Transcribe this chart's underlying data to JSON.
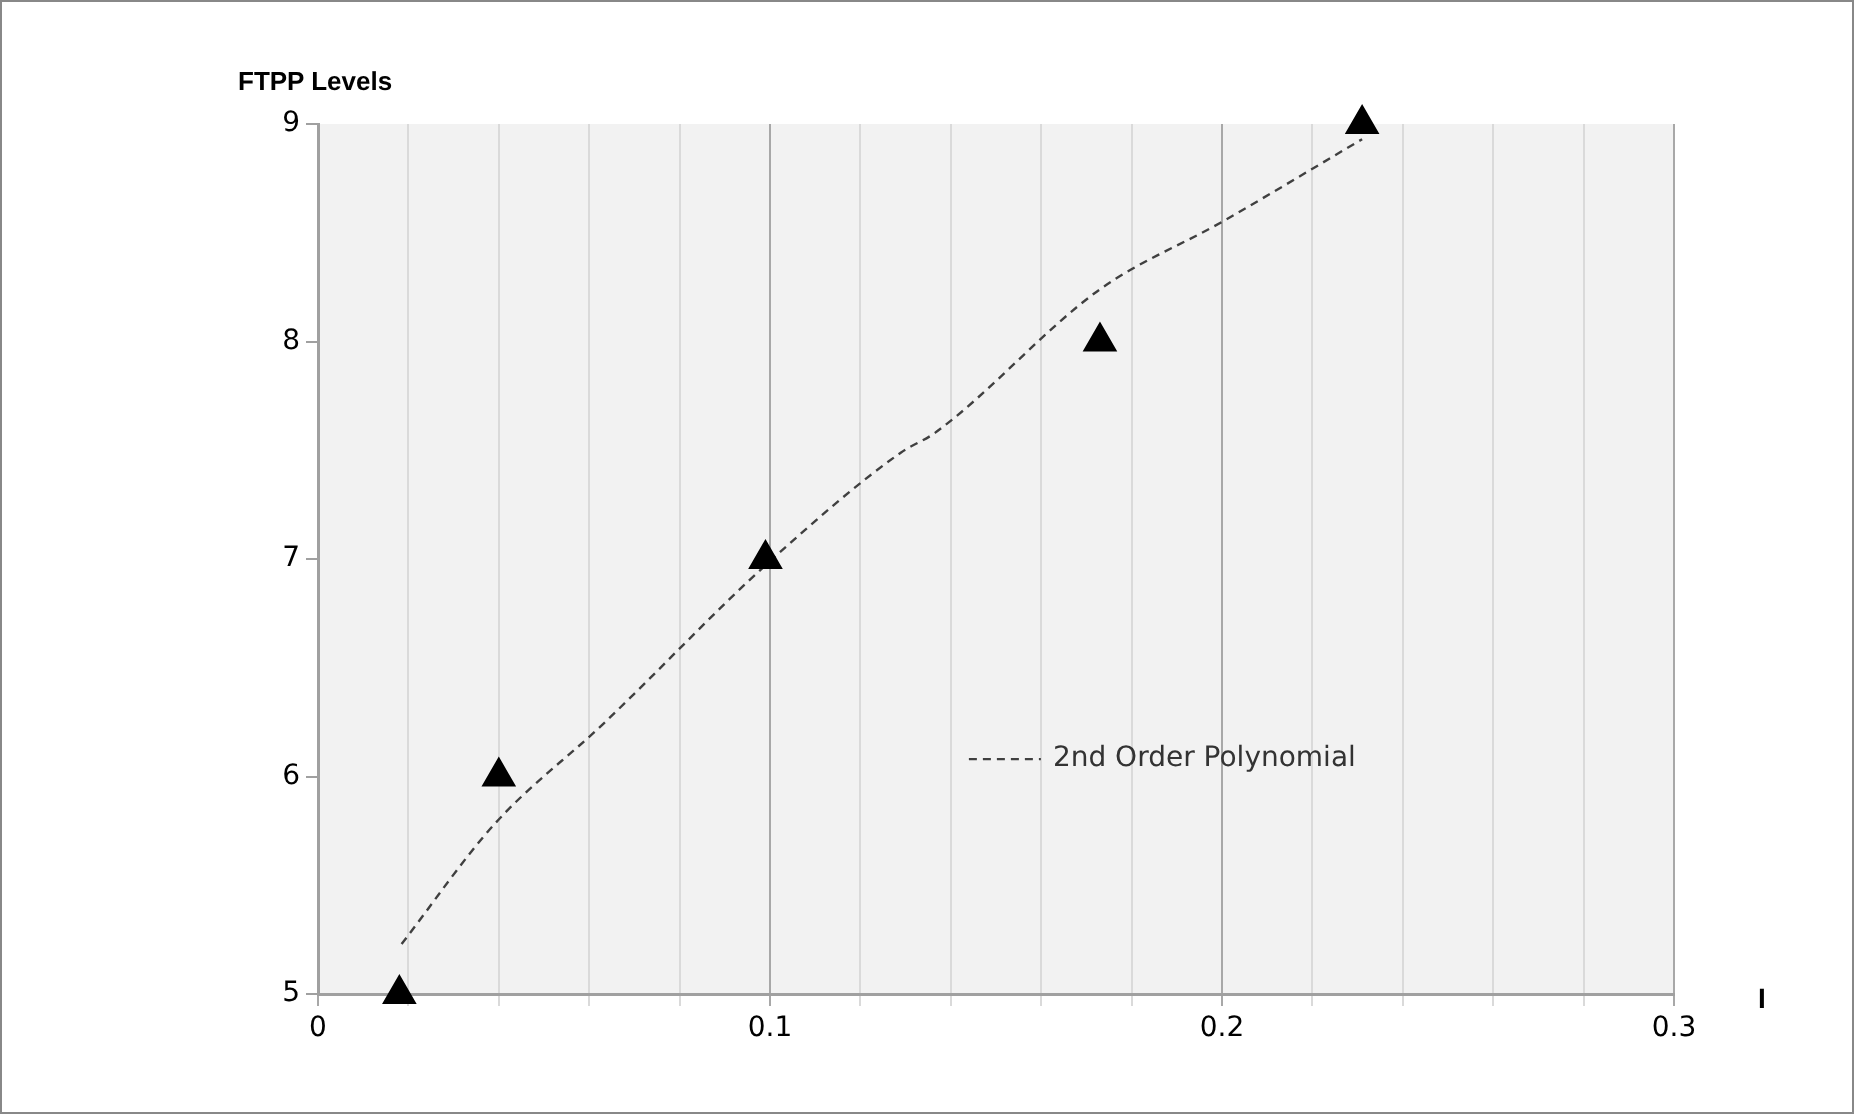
{
  "chart_data": {
    "type": "scatter",
    "xlabel": "I",
    "ylabel": "FTPP Levels",
    "xlim": [
      0,
      0.3
    ],
    "ylim": [
      5,
      9
    ],
    "xticks": [
      0,
      {
        "value": 0.02,
        "label": null
      },
      {
        "value": 0.04,
        "label": null
      },
      {
        "value": 0.06,
        "label": null
      },
      {
        "value": 0.08,
        "label": null
      },
      0.1,
      {
        "value": 0.12,
        "label": null
      },
      {
        "value": 0.14,
        "label": null
      },
      {
        "value": 0.16,
        "label": null
      },
      {
        "value": 0.18,
        "label": null
      },
      0.2,
      {
        "value": 0.22,
        "label": null
      },
      {
        "value": 0.24,
        "label": null
      },
      {
        "value": 0.26,
        "label": null
      },
      {
        "value": 0.28,
        "label": null
      },
      0.3
    ],
    "yticks": [
      5,
      6,
      7,
      8,
      9
    ],
    "grid": "x",
    "legend": "right",
    "series": [
      {
        "type": "scatter",
        "color": "#000000",
        "marker": "triangle",
        "x": [
          0.018,
          0.04,
          0.099,
          0.173,
          0.231
        ],
        "values": [
          5,
          6,
          7,
          8,
          9
        ]
      },
      {
        "type": "line",
        "name": "2nd Order Polynomial",
        "color": "#404040",
        "line_style": "dashed",
        "marker": "none",
        "x": [
          0.0185,
          0.039,
          0.063,
          0.1,
          0.129,
          0.1365,
          0.173,
          0.2,
          0.231
        ],
        "values": [
          5.23,
          5.78,
          6.24,
          6.99,
          7.49,
          7.58,
          8.24,
          8.55,
          8.93
        ]
      }
    ]
  }
}
